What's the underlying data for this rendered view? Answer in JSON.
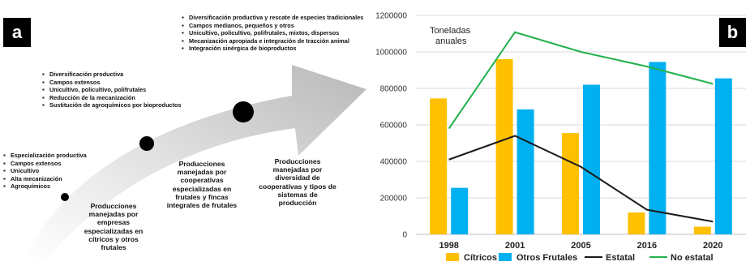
{
  "panel_a": {
    "letter": "a",
    "stages": [
      {
        "bullets": [
          "Especialización productiva",
          "Campos extensos",
          "Unicultivo",
          "Alta mecanización",
          "Agroquímicos"
        ],
        "description": "Producciones manejadas por empresas especializadas en cítricos y otros frutales"
      },
      {
        "bullets": [
          "Diversificación productiva",
          "Campos extensos",
          "Unicultivo, policultivo, polifrutales",
          "Reducción de la mecanización",
          "Sustitución de agroquímicos por bioproductos"
        ],
        "description": "Producciones manejadas por cooperativas especializadas en frutales y fincas integrales de frutales"
      },
      {
        "bullets": [
          "Diversificación productiva y rescate de especies tradicionales",
          "Campos medianos, pequeños y otros",
          "Unicultivo, policultivo, polifrutales, mixtos, dispersos",
          "Mecanización apropiada e integración de tracción animal",
          "Integración sinérgica de bioproductos"
        ],
        "description": "Producciones manejadas por diversidad de cooperativas y tipos de sistemas de producción"
      }
    ]
  },
  "panel_b": {
    "letter": "b",
    "colors": {
      "citricos": "#FFC000",
      "otros": "#00B0F0",
      "estatal": "#1a1a1a",
      "no_estatal": "#22B14C",
      "grid": "#d9d9d9"
    },
    "chart_data": {
      "type": "bar",
      "title": "",
      "xlabel": "",
      "ylabel": "Toneladas anuales",
      "ylabel_lines": [
        "Toneladas",
        "anuales"
      ],
      "ylim": [
        0,
        1200000
      ],
      "yticks": [
        "0",
        "200000",
        "400000",
        "600000",
        "800000",
        "1000000",
        "1200000"
      ],
      "yticks_values": [
        0,
        200000,
        400000,
        600000,
        800000,
        1000000,
        1200000
      ],
      "grid": true,
      "legend_position": "bottom",
      "categories": [
        "1998",
        "2001",
        "2005",
        "2016",
        "2020"
      ],
      "series": [
        {
          "name": "Cítricos",
          "type": "bar",
          "values": [
            745000,
            960000,
            555000,
            120000,
            42000
          ]
        },
        {
          "name": "Otros Frutales",
          "type": "bar",
          "values": [
            255000,
            685000,
            820000,
            945000,
            855000
          ]
        },
        {
          "name": "Estatal",
          "type": "line",
          "values": [
            410000,
            540000,
            370000,
            135000,
            70000
          ]
        },
        {
          "name": "No estatal",
          "type": "line",
          "values": [
            580000,
            1108000,
            1000000,
            920000,
            825000
          ]
        }
      ]
    }
  }
}
